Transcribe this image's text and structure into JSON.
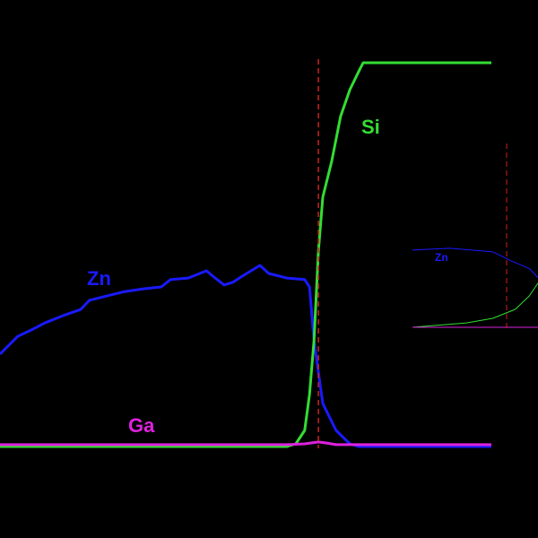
{
  "chart_data": [
    {
      "type": "line",
      "xlim": [
        0,
        100
      ],
      "ylim": [
        0,
        100
      ],
      "marker_x": 64.8,
      "marker_color": "#cc2222",
      "series": [
        {
          "name": "Zn",
          "color": "#1a1aff",
          "x": [
            0,
            1.8,
            3.6,
            6.4,
            9.1,
            12.8,
            16.4,
            18.2,
            21.9,
            25.5,
            29.2,
            32.8,
            34.7,
            38.3,
            42,
            43.8,
            45.6,
            47.4,
            49.3,
            52.9,
            54.7,
            58.4,
            62,
            63,
            63.9,
            65.7,
            68.4,
            71.2,
            73,
            100
          ],
          "values": [
            24.1,
            26.4,
            28.7,
            30.4,
            32.2,
            34.1,
            35.7,
            38.1,
            39.3,
            40.4,
            41.1,
            41.6,
            43.5,
            43.9,
            45.8,
            43.9,
            42.1,
            42.8,
            44.4,
            47.2,
            45.1,
            43.9,
            43.5,
            41.6,
            27.6,
            11.2,
            4.2,
            0.7,
            0,
            0
          ]
        },
        {
          "name": "Si",
          "color": "#33dd33",
          "x": [
            0,
            58.4,
            60.2,
            62,
            63,
            63.9,
            64.8,
            65.7,
            67.5,
            69.3,
            71.2,
            73,
            73.9,
            100
          ],
          "values": [
            0,
            0,
            0.7,
            4.2,
            13.6,
            27.6,
            50.9,
            65,
            74.3,
            86,
            93,
            97.7,
            100,
            100
          ]
        },
        {
          "name": "Ga",
          "color": "#dd22dd",
          "x": [
            0,
            58.4,
            62,
            64.8,
            66.5,
            68.4,
            100
          ],
          "values": [
            0.5,
            0.5,
            0.7,
            1.2,
            0.9,
            0.5,
            0.5
          ]
        }
      ]
    },
    {
      "type": "line",
      "xlim": [
        0,
        100
      ],
      "ylim": [
        0,
        100
      ],
      "marker_x": 75,
      "marker_color": "#cc2222",
      "series": [
        {
          "name": "Zn",
          "color": "#1a1aff",
          "x": [
            0,
            30,
            64,
            79,
            93,
            100
          ],
          "values": [
            42,
            43,
            41,
            36,
            32,
            27
          ]
        },
        {
          "name": "",
          "color": "#33dd33",
          "x": [
            0,
            43,
            64,
            82,
            93,
            100
          ],
          "values": [
            0,
            2.4,
            4.9,
            9.8,
            17,
            24
          ]
        },
        {
          "name": "",
          "color": "#dd22dd",
          "x": [
            0,
            100
          ],
          "values": [
            0,
            0
          ]
        }
      ]
    }
  ]
}
